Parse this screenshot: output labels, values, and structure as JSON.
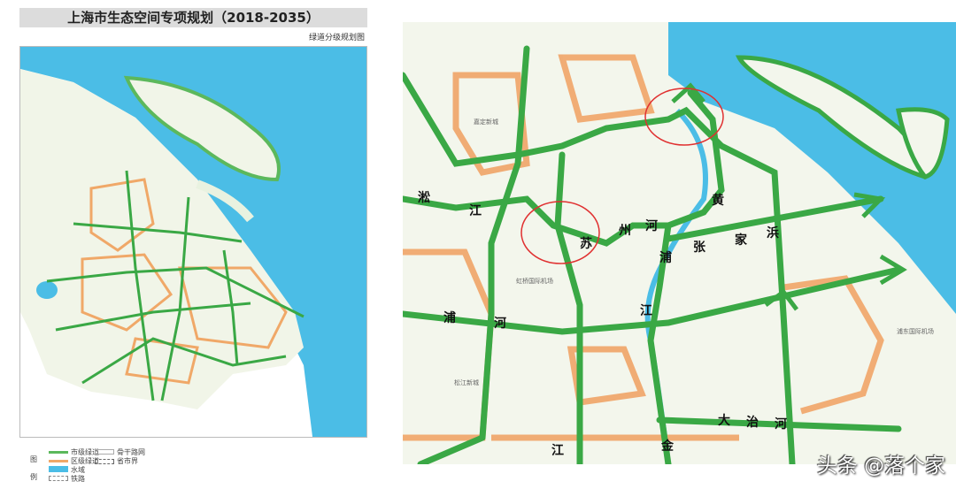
{
  "left_panel": {
    "title": "上海市生态空间专项规划（2018-2035）",
    "subtitle": "绿道分级规划图",
    "legend": {
      "heading_top": "图",
      "heading_bottom": "例",
      "items": [
        {
          "label": "市级绿道",
          "color": "#5cb85c"
        },
        {
          "label": "区级绿道",
          "color": "#f0a868"
        },
        {
          "label": "水域",
          "color": "#4bbde6"
        },
        {
          "label": "铁路",
          "color": "#888888"
        },
        {
          "label": "骨干路网",
          "color": "#aaaaaa"
        },
        {
          "label": "省市界",
          "color": "#666666"
        }
      ]
    }
  },
  "right_panel": {
    "river_labels": [
      "淞",
      "江",
      "苏",
      "州",
      "河",
      "黄",
      "浦",
      "张",
      "家",
      "浜",
      "江",
      "浦",
      "河",
      "大",
      "治",
      "河",
      "江",
      "金"
    ],
    "place_labels": [
      "嘉定新城",
      "虹桥国际机场",
      "松江新城",
      "浦东国际机场"
    ],
    "highlight_color": "#e03030"
  },
  "colors": {
    "water": "#4bbde6",
    "city_greenway": "#3aa845",
    "district_greenway": "#f0a060",
    "land": "#f3f6ec"
  },
  "watermark": "头条 @落个家"
}
